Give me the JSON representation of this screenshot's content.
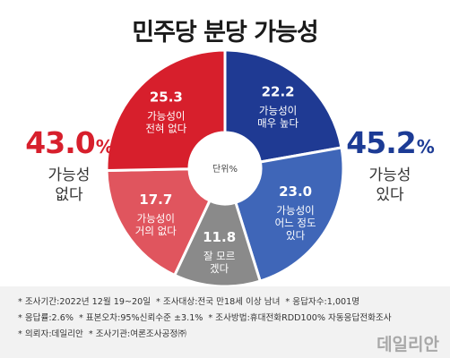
{
  "title": "민주당 분당 가능성",
  "chart_data": {
    "type": "pie",
    "title": "민주당 분당 가능성",
    "center_label": "단위%",
    "slices": [
      {
        "value": 22.2,
        "label_lines": [
          "가능성이",
          "매우 높다"
        ],
        "color": "#1f3a93"
      },
      {
        "value": 23.0,
        "label_lines": [
          "가능성이",
          "어느 정도",
          "있다"
        ],
        "color": "#3f66b8"
      },
      {
        "value": 11.8,
        "label_lines": [
          "잘 모르",
          "겠다"
        ],
        "color": "#8a8a8a"
      },
      {
        "value": 17.7,
        "label_lines": [
          "가능성이",
          "거의 없다"
        ],
        "color": "#e0555e"
      },
      {
        "value": 25.3,
        "label_lines": [
          "가능성이",
          "전혀 없다"
        ],
        "color": "#d71f2c"
      }
    ]
  },
  "summary": {
    "left": {
      "pct": "43.0",
      "unit": "%",
      "label_line1": "가능성",
      "label_line2": "없다"
    },
    "right": {
      "pct": "45.2",
      "unit": "%",
      "label_line1": "가능성",
      "label_line2": "있다"
    }
  },
  "notes": {
    "line1": [
      "* 조사기간:2022년 12월 19~20일",
      "* 조사대상:전국 만18세 이상 남녀",
      "* 응답자수:1,001명"
    ],
    "line2": [
      "* 응답률:2.6%",
      "* 표본오차:95%신뢰수준 ±3.1%",
      "* 조사방법:휴대전화RDD100% 자동응답전화조사"
    ],
    "line3": [
      "* 의뢰자:데일리안",
      "* 조사기관:여론조사공정㈜"
    ]
  },
  "brand": "데일리안",
  "colors": {
    "red": "#d71f2c",
    "blue": "#1c3b95",
    "note_bg": "#f2f2f2"
  }
}
